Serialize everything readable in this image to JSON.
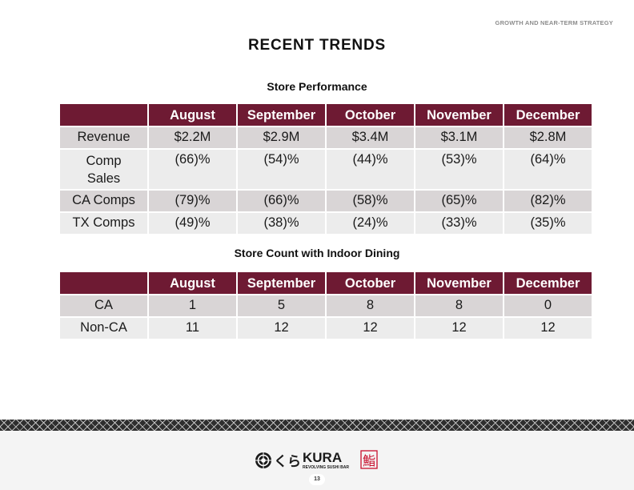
{
  "header": {
    "section_tag": "GROWTH AND NEAR-TERM STRATEGY",
    "title": "RECENT TRENDS"
  },
  "store_performance": {
    "title": "Store Performance",
    "columns": [
      "",
      "August",
      "September",
      "October",
      "November",
      "December"
    ],
    "rows": [
      {
        "label": "Revenue",
        "values": [
          "$2.2M",
          "$2.9M",
          "$3.4M",
          "$3.1M",
          "$2.8M"
        ]
      },
      {
        "label_lines": [
          "Comp",
          "Sales"
        ],
        "values": [
          "(66)%",
          "(54)%",
          "(44)%",
          "(53)%",
          "(64)%"
        ]
      },
      {
        "label": "CA Comps",
        "values": [
          "(79)%",
          "(66)%",
          "(58)%",
          "(65)%",
          "(82)%"
        ]
      },
      {
        "label": "TX Comps",
        "values": [
          "(49)%",
          "(38)%",
          "(24)%",
          "(33)%",
          "(35)%"
        ]
      }
    ]
  },
  "store_count": {
    "title": "Store Count with Indoor Dining",
    "columns": [
      "",
      "August",
      "September",
      "October",
      "November",
      "December"
    ],
    "rows": [
      {
        "label": "CA",
        "values": [
          "1",
          "5",
          "8",
          "8",
          "0"
        ]
      },
      {
        "label": "Non-CA",
        "values": [
          "11",
          "12",
          "12",
          "12",
          "12"
        ]
      }
    ]
  },
  "footer": {
    "logo": {
      "name_text": "KURA",
      "tagline": "REVOLVING SUSHI BAR",
      "script_text": "くら",
      "kanji": "鮨",
      "mark_icon": "kura-emblem-icon"
    },
    "page_number": "13"
  },
  "colors": {
    "header_fill": "#6e1a33",
    "row_dark": "#d9d5d6",
    "row_light": "#ececec",
    "logo_red": "#c8102e"
  }
}
